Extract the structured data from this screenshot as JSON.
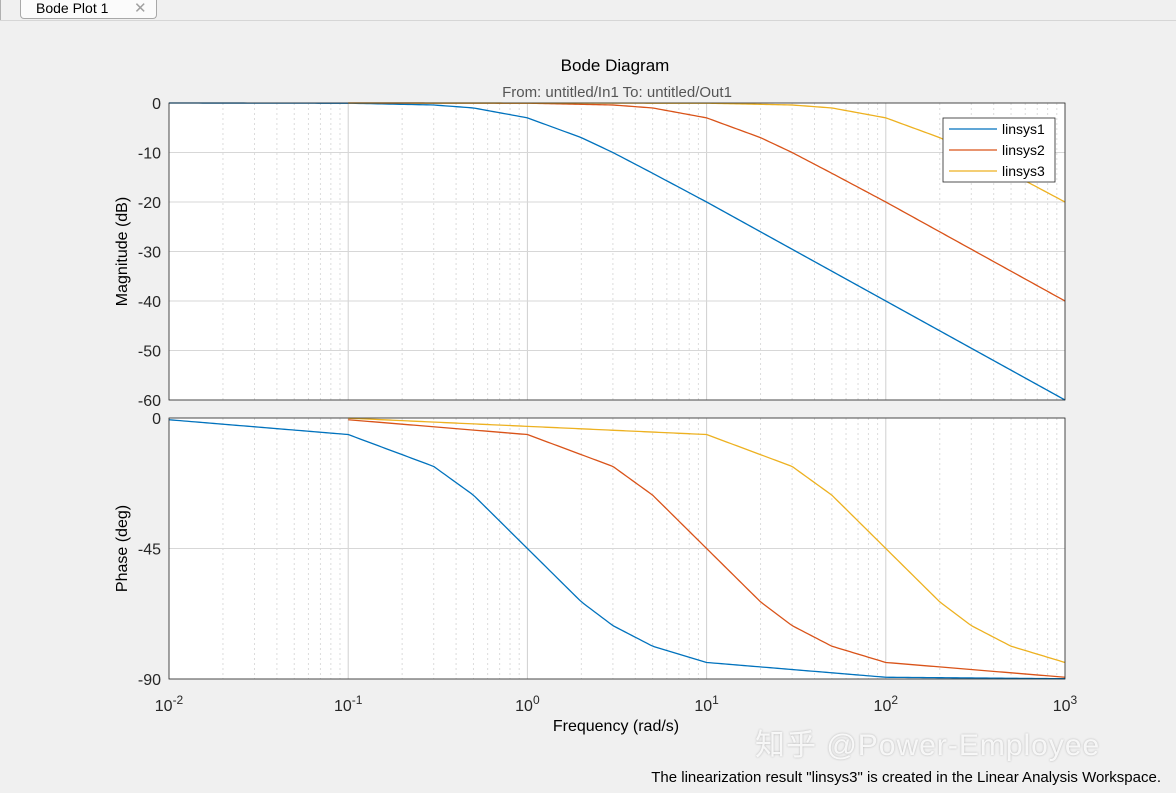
{
  "tab": {
    "label": "Bode Plot 1",
    "close_glyph": "✕"
  },
  "status_text": "The linearization result \"linsys3\" is created in the Linear Analysis Workspace.",
  "watermark": "知乎 @Power-Employee",
  "chart_data": {
    "type": "line",
    "title": "Bode Diagram",
    "subtitle": "From: untitled/In1  To: untitled/Out1",
    "xlabel": "Frequency  (rad/s)",
    "xscale": "log",
    "xlim": [
      0.01,
      1000
    ],
    "x_tick_values": [
      0.01,
      0.1,
      1,
      10,
      100,
      1000
    ],
    "x_tick_labels": [
      [
        "10",
        "-2"
      ],
      [
        "10",
        "-1"
      ],
      [
        "10",
        "0"
      ],
      [
        "10",
        "1"
      ],
      [
        "10",
        "2"
      ],
      [
        "10",
        "3"
      ]
    ],
    "grid": true,
    "legend_position": "top-right",
    "magnitude": {
      "ylabel": "Magnitude (dB)",
      "ylim": [
        -60,
        0
      ],
      "yticks": [
        0,
        -10,
        -20,
        -30,
        -40,
        -50,
        -60
      ],
      "ytick_labels": [
        "0",
        "-10",
        "-20",
        "-30",
        "-40",
        "-50",
        "-60"
      ]
    },
    "phase": {
      "ylabel": "Phase (deg)",
      "ylim": [
        -90,
        0
      ],
      "yticks": [
        0,
        -45,
        -90
      ],
      "ytick_labels": [
        "0",
        "-45",
        "-90"
      ]
    },
    "series": [
      {
        "name": "linsys1",
        "color": "#0072BD",
        "x_start": 0.01,
        "magnitude_points": [
          [
            0.01,
            0
          ],
          [
            0.1,
            -0.04
          ],
          [
            0.3,
            -0.4
          ],
          [
            0.5,
            -1
          ],
          [
            1,
            -3
          ],
          [
            2,
            -7
          ],
          [
            3,
            -10
          ],
          [
            5,
            -14.2
          ],
          [
            10,
            -20
          ],
          [
            100,
            -40
          ],
          [
            1000,
            -60
          ]
        ],
        "phase_points": [
          [
            0.01,
            -0.6
          ],
          [
            0.1,
            -5.7
          ],
          [
            0.3,
            -16.7
          ],
          [
            0.5,
            -26.6
          ],
          [
            1,
            -45
          ],
          [
            2,
            -63.4
          ],
          [
            3,
            -71.6
          ],
          [
            5,
            -78.7
          ],
          [
            10,
            -84.3
          ],
          [
            100,
            -89.4
          ],
          [
            1000,
            -89.9
          ]
        ]
      },
      {
        "name": "linsys2",
        "color": "#D95319",
        "x_start": 0.1,
        "magnitude_points": [
          [
            0.1,
            0
          ],
          [
            1,
            -0.04
          ],
          [
            3,
            -0.4
          ],
          [
            5,
            -1
          ],
          [
            10,
            -3
          ],
          [
            20,
            -7
          ],
          [
            30,
            -10
          ],
          [
            50,
            -14.2
          ],
          [
            100,
            -20
          ],
          [
            1000,
            -40
          ]
        ],
        "phase_points": [
          [
            0.1,
            -0.6
          ],
          [
            1,
            -5.7
          ],
          [
            3,
            -16.7
          ],
          [
            5,
            -26.6
          ],
          [
            10,
            -45
          ],
          [
            20,
            -63.4
          ],
          [
            30,
            -71.6
          ],
          [
            50,
            -78.7
          ],
          [
            100,
            -84.3
          ],
          [
            1000,
            -89.4
          ]
        ]
      },
      {
        "name": "linsys3",
        "color": "#EDB120",
        "x_start": 0.1,
        "magnitude_points": [
          [
            0.1,
            0
          ],
          [
            10,
            -0.04
          ],
          [
            30,
            -0.4
          ],
          [
            50,
            -1
          ],
          [
            100,
            -3
          ],
          [
            200,
            -7
          ],
          [
            300,
            -10
          ],
          [
            500,
            -14.2
          ],
          [
            1000,
            -20
          ]
        ],
        "phase_points": [
          [
            0.1,
            -0.06
          ],
          [
            10,
            -5.7
          ],
          [
            30,
            -16.7
          ],
          [
            50,
            -26.6
          ],
          [
            100,
            -45
          ],
          [
            200,
            -63.4
          ],
          [
            300,
            -71.6
          ],
          [
            500,
            -78.7
          ],
          [
            1000,
            -84.3
          ]
        ]
      }
    ]
  }
}
